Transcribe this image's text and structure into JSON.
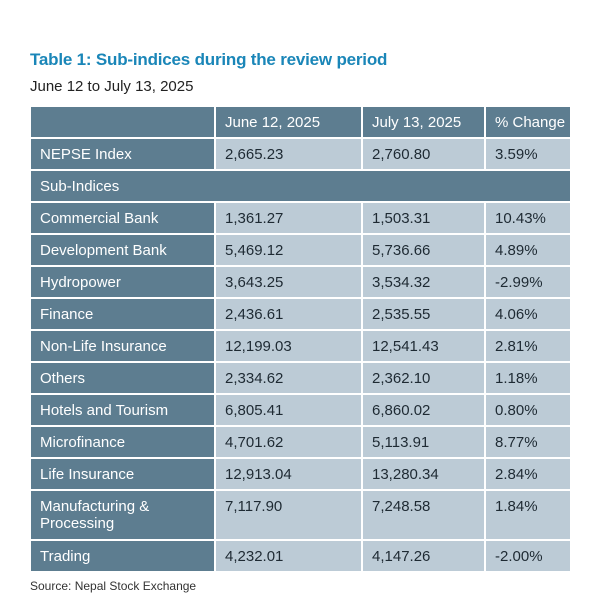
{
  "title": "Table 1: Sub-indices during the review period",
  "subtitle": "June 12 to July 13, 2025",
  "table": {
    "headers": [
      "",
      "June 12, 2025",
      "July 13, 2025",
      "% Change"
    ],
    "nepse": {
      "label": "NEPSE Index",
      "june": "2,665.23",
      "july": "2,760.80",
      "change": "3.59%"
    },
    "section_label": "Sub-Indices",
    "rows": [
      {
        "label": "Commercial Bank",
        "june": "1,361.27",
        "july": "1,503.31",
        "change": "10.43%"
      },
      {
        "label": "Development Bank",
        "june": "5,469.12",
        "july": "5,736.66",
        "change": "4.89%"
      },
      {
        "label": "Hydropower",
        "june": "3,643.25",
        "july": "3,534.32",
        "change": "-2.99%"
      },
      {
        "label": "Finance",
        "june": "2,436.61",
        "july": "2,535.55",
        "change": "4.06%"
      },
      {
        "label": "Non-Life Insurance",
        "june": "12,199.03",
        "july": "12,541.43",
        "change": "2.81%"
      },
      {
        "label": "Others",
        "june": "2,334.62",
        "july": "2,362.10",
        "change": "1.18%"
      },
      {
        "label": "Hotels and Tourism",
        "june": "6,805.41",
        "july": "6,860.02",
        "change": "0.80%"
      },
      {
        "label": "Microfinance",
        "june": "4,701.62",
        "july": "5,113.91",
        "change": "8.77%"
      },
      {
        "label": "Life Insurance",
        "june": "12,913.04",
        "july": "13,280.34",
        "change": "2.84%"
      },
      {
        "label": "Manufacturing & Processing",
        "june": "7,117.90",
        "july": "7,248.58",
        "change": "1.84%"
      },
      {
        "label": "Trading",
        "june": "4,232.01",
        "july": "4,147.26",
        "change": "-2.00%"
      }
    ]
  },
  "source": "Source: Nepal Stock Exchange",
  "colors": {
    "title": "#1a86b8",
    "header_bg": "#5d7d90",
    "cell_bg": "#bccbd6"
  }
}
